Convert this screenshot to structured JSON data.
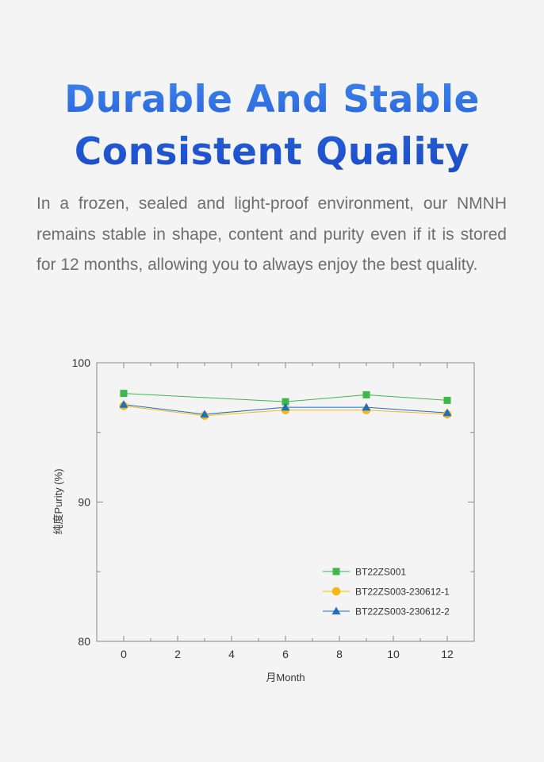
{
  "heading": {
    "line1": "Durable And Stable",
    "line2": "Consistent Quality"
  },
  "intro": "In a frozen, sealed and light-proof environment, our NMNH remains stable in shape, content and purity even if it is stored for 12 months, allowing you to always enjoy the best quality.",
  "colors": {
    "title_gradient_top": "#3f86ee",
    "title_gradient_bottom": "#1c49c4",
    "body_text": "#6e6e6e",
    "background": "#f4f4f4"
  },
  "chart_data": {
    "type": "line",
    "xlabel": "月Month",
    "ylabel": "纯度Purity (%)",
    "xlim": [
      -1,
      13
    ],
    "ylim": [
      80,
      100
    ],
    "xticks": [
      0,
      2,
      4,
      6,
      8,
      10,
      12
    ],
    "yticks": [
      80,
      90,
      100
    ],
    "x": [
      0,
      3,
      6,
      9,
      12
    ],
    "grid": false,
    "legend_position": "bottom-right",
    "series": [
      {
        "name": "BT22ZS001",
        "marker": "square",
        "color": "#3db84a",
        "values": [
          97.8,
          null,
          97.2,
          97.7,
          97.3
        ]
      },
      {
        "name": "BT22ZS003-230612-1",
        "marker": "circle",
        "color": "#f5b81a",
        "values": [
          96.9,
          96.2,
          96.6,
          96.6,
          96.3
        ]
      },
      {
        "name": "BT22ZS003-230612-2",
        "marker": "triangle",
        "color": "#1f6fbd",
        "values": [
          97.0,
          96.3,
          96.8,
          96.8,
          96.4
        ]
      }
    ]
  }
}
